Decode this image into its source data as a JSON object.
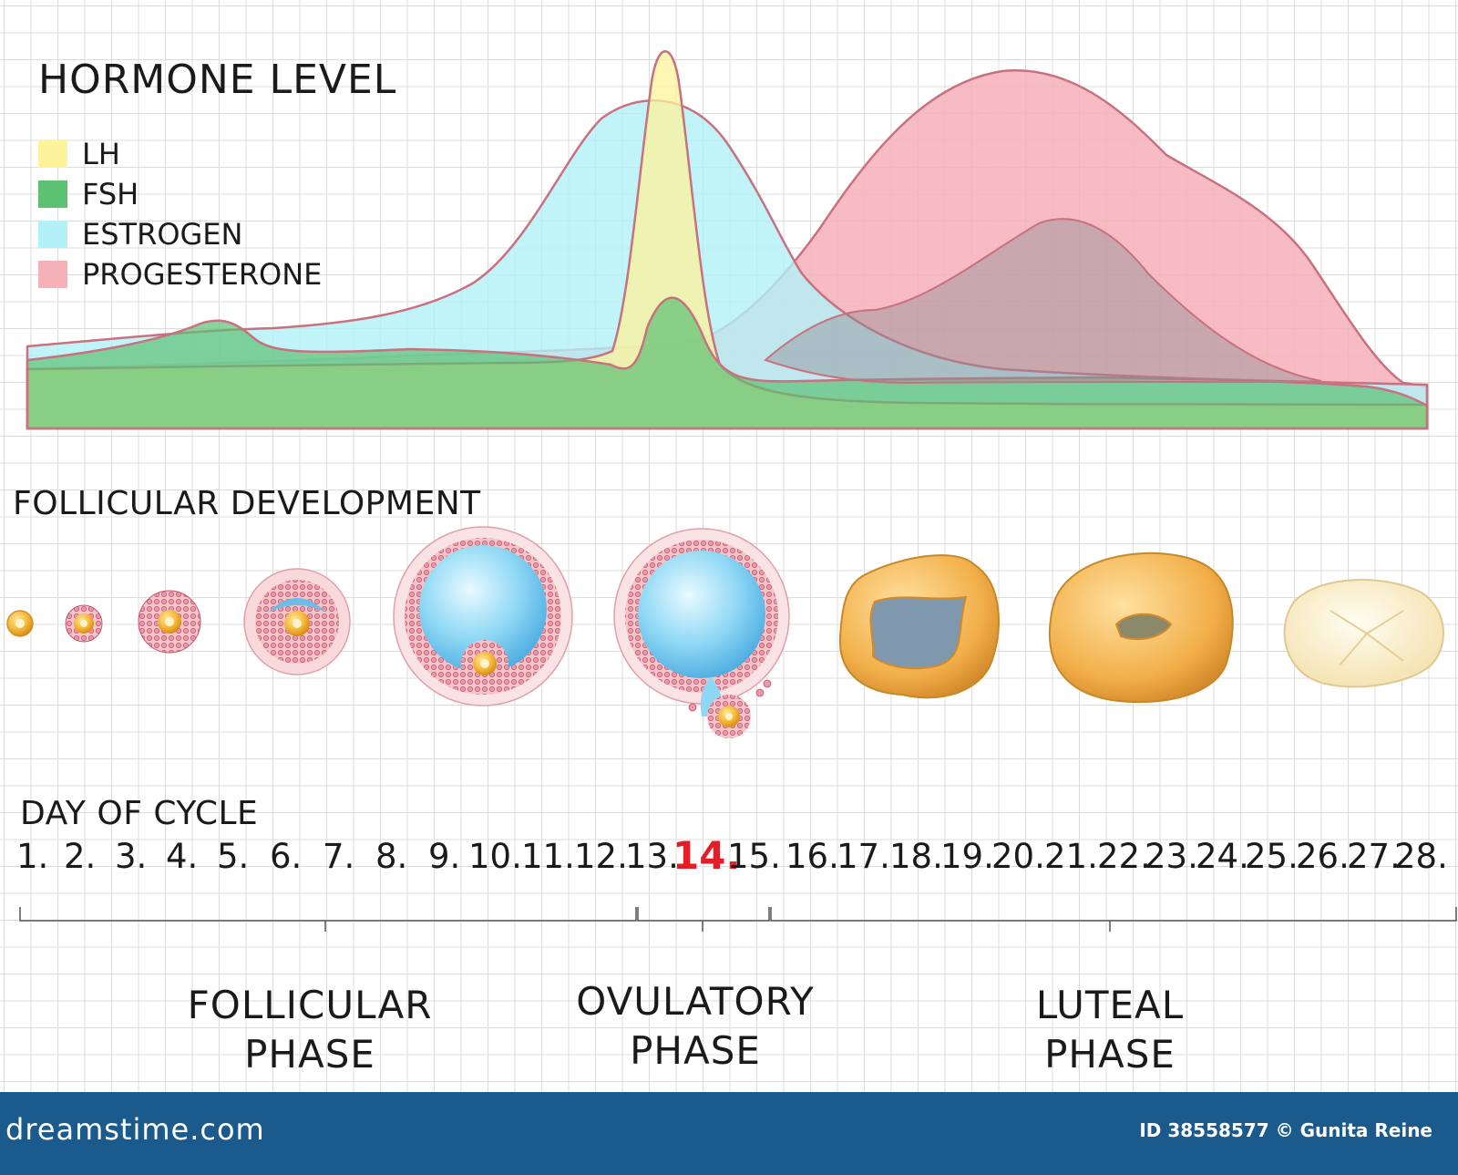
{
  "title": "HORMONE LEVEL",
  "legend": [
    {
      "label": "LH",
      "color": "#fdf39a"
    },
    {
      "label": "FSH",
      "color": "#5cc173"
    },
    {
      "label": "ESTROGEN",
      "color": "#b2f1f8"
    },
    {
      "label": "PROGESTERONE",
      "color": "#f6b0b8"
    }
  ],
  "follicular_title": "FOLLICULAR DEVELOPMENT",
  "cycle_title": "DAY OF CYCLE",
  "days": [
    "1.",
    "2.",
    "3.",
    "4.",
    "5.",
    "6.",
    "7.",
    "8.",
    "9.",
    "10.",
    "11.",
    "12.",
    "13.",
    "14.",
    "15.",
    "16.",
    "17.",
    "18.",
    "19.",
    "20.",
    "21.",
    "22.",
    "23.",
    "24.",
    "25.",
    "26.",
    "27.",
    "28."
  ],
  "highlight_day": "14.",
  "phases": {
    "follicular": [
      "FOLLICULAR",
      "PHASE"
    ],
    "ovulatory": [
      "OVULATORY",
      "PHASE"
    ],
    "luteal": [
      "LUTEAL",
      "PHASE"
    ]
  },
  "footer": {
    "brand": "dreamstime.com",
    "credit": "ID 38558577 © Gunita Reine"
  }
}
